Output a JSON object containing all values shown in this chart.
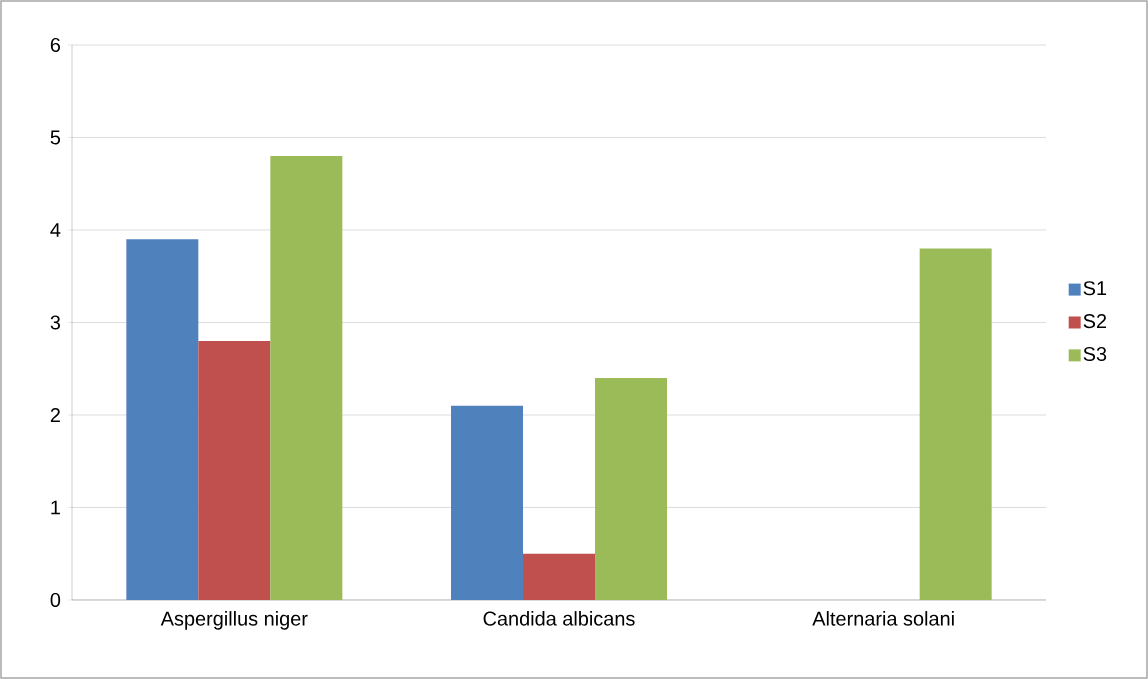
{
  "chart_data": {
    "type": "bar",
    "categories": [
      "Aspergillus niger",
      "Candida albicans",
      "Alternaria solani"
    ],
    "series": [
      {
        "name": "S1",
        "color": "#4f81bd",
        "values": [
          3.9,
          2.1,
          0
        ]
      },
      {
        "name": "S2",
        "color": "#c0504d",
        "values": [
          2.8,
          0.5,
          0
        ]
      },
      {
        "name": "S3",
        "color": "#9bbb59",
        "values": [
          4.8,
          2.4,
          3.8
        ]
      }
    ],
    "ylim": [
      0,
      6
    ],
    "yticks": [
      0,
      1,
      2,
      3,
      4,
      5,
      6
    ],
    "grid": "y",
    "legend": "right"
  }
}
